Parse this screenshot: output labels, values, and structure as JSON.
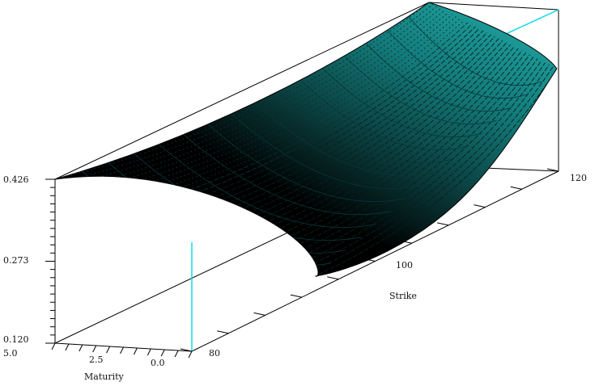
{
  "chart_data": {
    "type": "surface",
    "title": "",
    "xlabel": "Strike",
    "ylabel": "Maturity",
    "zlabel": "",
    "x_ticks": [
      "80",
      "100",
      "120"
    ],
    "y_ticks": [
      "5.0",
      "2.5",
      "0.0"
    ],
    "z_ticks": [
      "0.426",
      "0.273",
      "0.120"
    ],
    "xlim": [
      80,
      120
    ],
    "ylim": [
      0.0,
      5.0
    ],
    "zlim": [
      0.12,
      0.426
    ],
    "grid": false,
    "colors": {
      "surface_lit": "#1fa5a3",
      "surface_dark": "#000000",
      "highlight": "#00d8e8",
      "frame": "#000000"
    },
    "corner_values": [
      {
        "strike": 80,
        "maturity": 5.0,
        "vol": 0.426
      },
      {
        "strike": 120,
        "maturity": 5.0,
        "vol": 0.426
      },
      {
        "strike": 120,
        "maturity": 0.0,
        "vol": 0.4
      },
      {
        "strike": 105,
        "maturity": 2.5,
        "vol": 0.24
      }
    ]
  }
}
